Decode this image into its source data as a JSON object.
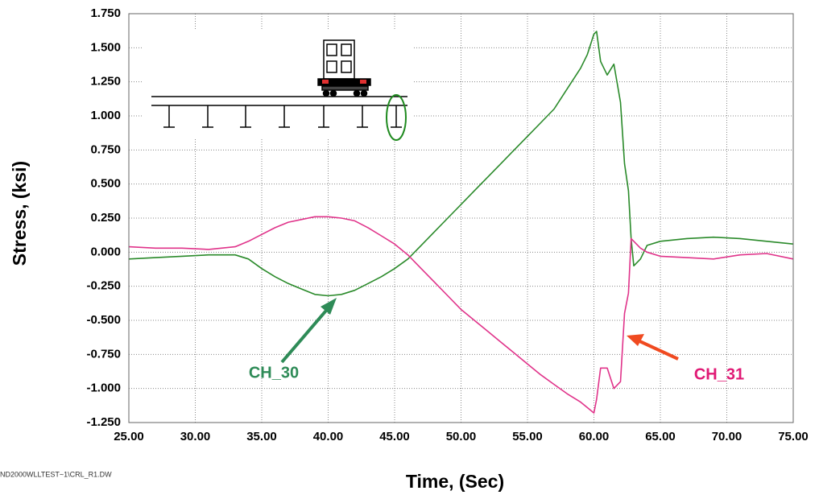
{
  "chart_data": {
    "type": "line",
    "x_label": "Time, (Sec)",
    "y_label": "Stress, (ksi)",
    "footer": "ND2000WLLTEST~1\\CRL_R1.DW",
    "x": [
      25,
      27,
      29,
      31,
      33,
      34,
      35,
      36,
      37,
      38,
      39,
      40,
      41,
      42,
      43,
      44,
      45,
      46,
      47,
      48,
      49,
      50,
      51,
      52,
      53,
      54,
      55,
      56,
      57,
      58,
      59,
      59.5,
      60,
      60.2,
      60.5,
      61,
      61.5,
      62,
      62.3,
      62.6,
      62.8,
      63,
      63.5,
      64,
      65,
      67,
      69,
      71,
      73,
      75
    ],
    "series": [
      {
        "name": "CH_30",
        "color": "#2a8a2a",
        "values": [
          -0.05,
          -0.04,
          -0.03,
          -0.02,
          -0.02,
          -0.05,
          -0.12,
          -0.18,
          -0.23,
          -0.27,
          -0.31,
          -0.32,
          -0.31,
          -0.28,
          -0.23,
          -0.18,
          -0.12,
          -0.05,
          0.05,
          0.15,
          0.25,
          0.35,
          0.45,
          0.55,
          0.65,
          0.75,
          0.85,
          0.95,
          1.05,
          1.2,
          1.35,
          1.45,
          1.6,
          1.62,
          1.4,
          1.3,
          1.38,
          1.1,
          0.65,
          0.45,
          0.1,
          -0.1,
          -0.05,
          0.05,
          0.08,
          0.1,
          0.11,
          0.1,
          0.08,
          0.06
        ]
      },
      {
        "name": "CH_31",
        "color": "#e0338a",
        "values": [
          0.04,
          0.03,
          0.03,
          0.02,
          0.04,
          0.08,
          0.13,
          0.18,
          0.22,
          0.24,
          0.26,
          0.26,
          0.25,
          0.23,
          0.18,
          0.12,
          0.06,
          -0.02,
          -0.12,
          -0.22,
          -0.32,
          -0.42,
          -0.5,
          -0.58,
          -0.66,
          -0.74,
          -0.82,
          -0.9,
          -0.97,
          -1.04,
          -1.1,
          -1.14,
          -1.18,
          -1.08,
          -0.85,
          -0.85,
          -1.0,
          -0.95,
          -0.45,
          -0.3,
          0.1,
          0.08,
          0.03,
          0.0,
          -0.03,
          -0.04,
          -0.05,
          -0.02,
          -0.01,
          -0.05
        ]
      }
    ],
    "xlim": [
      25,
      75
    ],
    "xticks": [
      {
        "value": 25,
        "label": "25.00"
      },
      {
        "value": 30,
        "label": "30.00"
      },
      {
        "value": 35,
        "label": "35.00"
      },
      {
        "value": 40,
        "label": "40.00"
      },
      {
        "value": 45,
        "label": "45.00"
      },
      {
        "value": 50,
        "label": "50.00"
      },
      {
        "value": 55,
        "label": "55.00"
      },
      {
        "value": 60,
        "label": "60.00"
      },
      {
        "value": 65,
        "label": "65.00"
      },
      {
        "value": 70,
        "label": "70.00"
      },
      {
        "value": 75,
        "label": "75.00"
      }
    ],
    "ylim": [
      -1.25,
      1.75
    ],
    "yticks": [
      {
        "value": -1.25,
        "label": "-1.250"
      },
      {
        "value": -1,
        "label": "-1.000"
      },
      {
        "value": -0.75,
        "label": "-0.750"
      },
      {
        "value": -0.5,
        "label": "-0.500"
      },
      {
        "value": -0.25,
        "label": "-0.250"
      },
      {
        "value": 0,
        "label": "0.000"
      },
      {
        "value": 0.25,
        "label": "0.250"
      },
      {
        "value": 0.5,
        "label": "0.500"
      },
      {
        "value": 0.75,
        "label": "0.750"
      },
      {
        "value": 1,
        "label": "1.000"
      },
      {
        "value": 1.25,
        "label": "1.250"
      },
      {
        "value": 1.5,
        "label": "1.500"
      },
      {
        "value": 1.75,
        "label": "1.750"
      }
    ],
    "grid": true
  }
}
